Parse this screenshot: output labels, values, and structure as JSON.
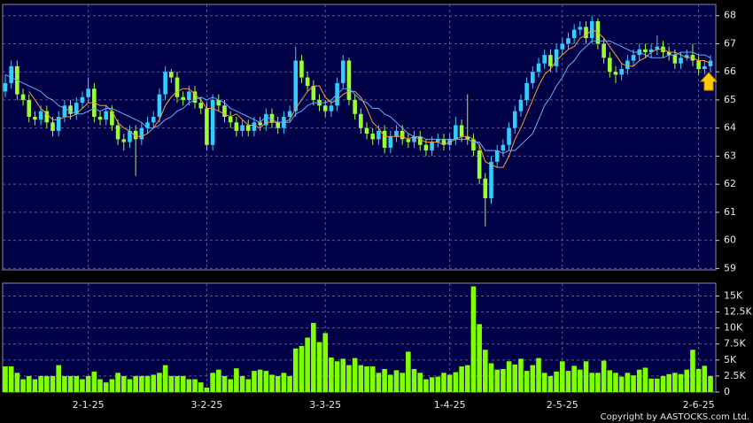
{
  "chart_data": [
    {
      "type": "candlestick",
      "categories": [
        null,
        null,
        null,
        null,
        null,
        null,
        null,
        null,
        null,
        null,
        null,
        null,
        null,
        null,
        "2-1-25",
        null,
        null,
        null,
        null,
        null,
        null,
        null,
        null,
        null,
        null,
        null,
        null,
        null,
        null,
        null,
        null,
        null,
        null,
        null,
        "3-2-25",
        null,
        null,
        null,
        null,
        null,
        null,
        null,
        null,
        null,
        null,
        null,
        null,
        null,
        null,
        null,
        null,
        null,
        null,
        null,
        "3-3-25",
        null,
        null,
        null,
        null,
        null,
        null,
        null,
        null,
        null,
        null,
        null,
        null,
        null,
        null,
        null,
        null,
        null,
        null,
        null,
        null,
        "1-4-25",
        null,
        null,
        null,
        null,
        null,
        null,
        null,
        null,
        null,
        null,
        null,
        null,
        null,
        null,
        null,
        null,
        null,
        null,
        "2-5-25",
        null,
        null,
        null,
        null,
        null,
        null,
        null,
        null,
        null,
        null,
        null,
        null,
        null,
        null,
        null,
        null,
        null,
        null,
        null,
        null,
        null,
        null,
        "2-6-25",
        null,
        null
      ],
      "open": [
        65.3,
        65.6,
        66.2,
        65.2,
        65.0,
        64.4,
        64.3,
        64.6,
        64.2,
        63.9,
        64.4,
        64.8,
        64.5,
        64.9,
        65.1,
        65.4,
        64.4,
        64.3,
        64.6,
        64.1,
        63.6,
        63.5,
        63.9,
        63.6,
        64.0,
        64.2,
        64.4,
        65.2,
        66.0,
        65.8,
        65.1,
        65.0,
        65.3,
        64.9,
        64.7,
        63.4,
        65.0,
        64.8,
        64.4,
        64.2,
        63.9,
        64.1,
        63.9,
        64.2,
        64.1,
        64.5,
        64.2,
        64.0,
        64.4,
        64.6,
        66.4,
        65.8,
        65.5,
        65.0,
        64.8,
        64.6,
        64.8,
        65.6,
        66.4,
        65.0,
        64.5,
        64.0,
        63.8,
        63.6,
        63.9,
        63.3,
        63.7,
        63.9,
        63.6,
        63.5,
        63.7,
        63.4,
        63.2,
        63.5,
        63.6,
        63.4,
        63.6,
        64.1,
        63.7,
        63.6,
        63.2,
        62.2,
        61.5,
        62.8,
        63.2,
        63.4,
        64.0,
        64.6,
        65.0,
        65.6,
        66.0,
        66.3,
        66.6,
        66.2,
        66.8,
        67.0,
        67.2,
        67.5,
        67.6,
        67.2,
        67.8,
        67.0,
        66.5,
        66.0,
        65.9,
        66.1,
        66.4,
        66.6,
        66.8,
        66.7,
        66.8,
        66.9,
        66.7,
        66.6,
        66.3,
        66.5,
        66.6,
        66.4,
        66.1,
        66.2
      ],
      "high": [
        65.9,
        66.4,
        66.4,
        65.4,
        65.2,
        64.6,
        64.8,
        64.8,
        64.4,
        64.6,
        65.0,
        65.0,
        65.1,
        65.3,
        65.8,
        65.6,
        64.6,
        64.8,
        64.8,
        64.3,
        63.8,
        64.1,
        64.1,
        64.2,
        64.4,
        64.6,
        65.4,
        66.2,
        66.1,
        66.0,
        65.3,
        65.5,
        65.5,
        65.1,
        64.9,
        65.2,
        65.2,
        65.0,
        64.6,
        64.4,
        64.3,
        64.3,
        64.4,
        64.4,
        64.7,
        64.7,
        64.4,
        64.6,
        64.8,
        66.9,
        66.6,
        66.0,
        65.7,
        65.2,
        65.0,
        65.0,
        65.8,
        66.6,
        66.5,
        65.2,
        64.7,
        64.2,
        64.0,
        64.1,
        64.1,
        63.9,
        64.1,
        64.1,
        63.8,
        63.9,
        63.9,
        63.6,
        63.7,
        63.8,
        63.8,
        63.8,
        64.4,
        64.3,
        65.2,
        63.8,
        63.4,
        62.4,
        63.0,
        63.4,
        63.6,
        64.2,
        64.8,
        65.2,
        65.8,
        66.2,
        66.5,
        66.8,
        66.8,
        67.0,
        67.2,
        67.4,
        67.7,
        67.8,
        67.8,
        68.0,
        67.9,
        67.2,
        66.7,
        66.2,
        66.3,
        66.6,
        66.8,
        67.0,
        67.0,
        67.0,
        67.3,
        67.1,
        66.9,
        66.8,
        66.7,
        66.8,
        67.0,
        66.6,
        66.4,
        66.6
      ],
      "low": [
        65.1,
        65.4,
        65.0,
        64.8,
        64.2,
        64.1,
        64.1,
        64.0,
        63.7,
        63.7,
        64.2,
        64.3,
        64.3,
        64.7,
        64.9,
        64.2,
        64.1,
        64.1,
        63.9,
        63.4,
        63.2,
        63.3,
        62.3,
        63.4,
        63.8,
        64.0,
        64.2,
        65.0,
        65.6,
        64.9,
        64.8,
        64.8,
        64.7,
        64.5,
        63.2,
        63.2,
        64.6,
        64.2,
        64.0,
        63.7,
        63.7,
        63.7,
        63.7,
        63.9,
        63.9,
        64.0,
        63.8,
        63.8,
        64.2,
        64.4,
        65.6,
        65.3,
        64.8,
        64.6,
        64.4,
        64.4,
        64.6,
        65.4,
        64.8,
        64.3,
        63.8,
        63.6,
        63.4,
        63.4,
        63.1,
        63.1,
        63.5,
        63.4,
        63.3,
        63.3,
        63.2,
        63.0,
        63.0,
        63.3,
        63.2,
        63.2,
        63.4,
        63.5,
        63.4,
        63.0,
        62.0,
        60.5,
        61.3,
        62.6,
        63.0,
        63.2,
        63.8,
        64.4,
        64.8,
        65.4,
        65.8,
        66.1,
        66.0,
        66.0,
        66.6,
        66.8,
        67.0,
        67.3,
        67.0,
        67.0,
        66.8,
        66.3,
        65.8,
        65.6,
        65.7,
        65.9,
        66.2,
        66.4,
        66.5,
        66.5,
        66.6,
        66.5,
        66.4,
        66.1,
        66.1,
        66.4,
        66.2,
        65.9,
        65.9,
        66.0
      ],
      "close": [
        65.6,
        66.2,
        65.2,
        65.0,
        64.4,
        64.3,
        64.6,
        64.2,
        63.9,
        64.4,
        64.8,
        64.5,
        64.9,
        65.1,
        65.4,
        64.4,
        64.3,
        64.6,
        64.1,
        63.6,
        63.5,
        63.9,
        63.6,
        64.0,
        64.2,
        64.4,
        65.2,
        66.0,
        65.8,
        65.1,
        65.0,
        65.3,
        64.9,
        64.7,
        63.4,
        65.0,
        64.8,
        64.4,
        64.2,
        63.9,
        64.1,
        63.9,
        64.2,
        64.1,
        64.5,
        64.2,
        64.0,
        64.4,
        64.6,
        66.4,
        65.8,
        65.5,
        65.0,
        64.8,
        64.6,
        64.8,
        65.6,
        66.4,
        65.0,
        64.5,
        64.0,
        63.8,
        63.6,
        63.9,
        63.3,
        63.7,
        63.9,
        63.6,
        63.5,
        63.7,
        63.4,
        63.2,
        63.5,
        63.6,
        63.4,
        63.6,
        64.1,
        63.7,
        63.6,
        63.2,
        62.2,
        61.5,
        62.8,
        63.2,
        63.4,
        64.0,
        64.6,
        65.0,
        65.6,
        66.0,
        66.3,
        66.6,
        66.2,
        66.8,
        67.0,
        67.2,
        67.5,
        67.6,
        67.2,
        67.8,
        67.0,
        66.5,
        66.0,
        65.9,
        66.1,
        66.4,
        66.6,
        66.8,
        66.7,
        66.8,
        66.9,
        66.7,
        66.6,
        66.3,
        66.5,
        66.6,
        66.4,
        66.1,
        66.2,
        66.4
      ],
      "up_color": "#33ccff",
      "down_color": "#99ff33",
      "lines": [
        {
          "color": "#ff9933",
          "values": [
            null,
            null,
            null,
            null,
            65.3,
            65.0,
            64.7,
            64.5,
            64.3,
            64.3,
            64.4,
            64.4,
            64.5,
            64.7,
            64.9,
            64.9,
            64.8,
            64.8,
            64.6,
            64.2,
            64.0,
            63.9,
            63.7,
            63.7,
            63.8,
            64.0,
            64.3,
            64.8,
            65.1,
            65.3,
            65.4,
            65.4,
            65.2,
            65.0,
            64.7,
            64.7,
            64.6,
            64.5,
            64.4,
            64.5,
            64.3,
            64.1,
            64.1,
            64.0,
            64.2,
            64.2,
            64.2,
            64.2,
            64.3,
            64.7,
            65.0,
            65.3,
            65.5,
            65.5,
            65.1,
            64.9,
            65.0,
            65.2,
            65.3,
            65.3,
            65.1,
            64.7,
            64.2,
            64.0,
            63.7,
            63.7,
            63.7,
            63.7,
            63.6,
            63.7,
            63.6,
            63.5,
            63.5,
            63.5,
            63.4,
            63.5,
            63.6,
            63.7,
            63.7,
            63.6,
            63.4,
            62.8,
            62.7,
            62.6,
            62.6,
            63.0,
            63.6,
            64.0,
            64.5,
            65.0,
            65.5,
            65.9,
            66.1,
            66.4,
            66.6,
            66.8,
            66.9,
            67.2,
            67.3,
            67.5,
            67.4,
            67.2,
            66.9,
            66.6,
            66.3,
            66.2,
            66.2,
            66.4,
            66.5,
            66.7,
            66.8,
            66.8,
            66.7,
            66.7,
            66.6,
            66.5,
            66.5,
            66.4,
            66.4,
            66.3
          ]
        },
        {
          "color": "#66aaff",
          "values": [
            65.9,
            65.8,
            65.7,
            65.6,
            65.5,
            65.4,
            65.3,
            65.1,
            65.0,
            64.8,
            64.7,
            64.6,
            64.5,
            64.5,
            64.6,
            64.7,
            64.6,
            64.7,
            64.7,
            64.6,
            64.5,
            64.4,
            64.3,
            64.2,
            64.0,
            64.0,
            64.1,
            64.3,
            64.4,
            64.6,
            64.7,
            64.9,
            65.0,
            65.1,
            65.0,
            65.1,
            65.0,
            64.9,
            64.7,
            64.6,
            64.5,
            64.4,
            64.3,
            64.2,
            64.4,
            64.3,
            64.2,
            64.2,
            64.2,
            64.5,
            64.6,
            64.8,
            64.9,
            64.9,
            64.9,
            65.0,
            65.2,
            65.4,
            65.4,
            65.2,
            65.0,
            64.9,
            64.7,
            64.7,
            64.5,
            64.4,
            64.2,
            64.0,
            63.8,
            63.7,
            63.7,
            63.6,
            63.6,
            63.6,
            63.6,
            63.6,
            63.6,
            63.6,
            63.6,
            63.5,
            63.5,
            63.2,
            63.2,
            63.2,
            63.1,
            63.2,
            63.2,
            63.4,
            63.6,
            63.8,
            64.3,
            64.8,
            65.1,
            65.5,
            65.8,
            66.2,
            66.4,
            66.7,
            66.9,
            67.1,
            67.1,
            67.1,
            67.1,
            67.0,
            66.9,
            66.8,
            66.7,
            66.7,
            66.6,
            66.5,
            66.5,
            66.5,
            66.6,
            66.6,
            66.7,
            66.7,
            66.7,
            66.6,
            66.6,
            66.5
          ]
        }
      ],
      "ylim": [
        58.95,
        68.4
      ],
      "yticks": [
        59,
        60,
        61,
        62,
        63,
        64,
        65,
        66,
        67,
        68
      ],
      "grid": true
    },
    {
      "type": "bar",
      "values": [
        4000,
        4000,
        3000,
        2000,
        2500,
        2000,
        2500,
        2500,
        2500,
        4200,
        2500,
        2500,
        2500,
        2000,
        2500,
        3200,
        2000,
        1500,
        2000,
        3000,
        2500,
        2000,
        2500,
        2500,
        2500,
        2700,
        3000,
        4200,
        2500,
        2500,
        2500,
        2000,
        2000,
        1500,
        700,
        3000,
        3500,
        2500,
        2000,
        3700,
        2500,
        2000,
        3300,
        3500,
        3300,
        2700,
        2500,
        3000,
        2500,
        6800,
        7200,
        8500,
        10800,
        7800,
        9200,
        5400,
        4800,
        5200,
        4200,
        5300,
        4200,
        4000,
        4000,
        3000,
        3600,
        2700,
        3400,
        3000,
        6300,
        3600,
        3000,
        2000,
        2300,
        2400,
        3000,
        2700,
        3100,
        4000,
        4200,
        16500,
        10600,
        6600,
        4500,
        3500,
        3600,
        4800,
        4300,
        5200,
        3300,
        4200,
        5300,
        3000,
        2500,
        3200,
        4800,
        3300,
        4100,
        3500,
        4800,
        3000,
        3000,
        4900,
        3400,
        3000,
        2400,
        3000,
        2600,
        3500,
        3800,
        2100,
        2100,
        2500,
        2800,
        3000,
        2800,
        3500,
        6600,
        3600,
        4100,
        2500
      ],
      "color": "#80ff00",
      "ylim": [
        0,
        17000
      ],
      "yticks": [
        0,
        {
          "value": 2500,
          "label": "2.5K"
        },
        {
          "value": 5000,
          "label": "5K"
        },
        {
          "value": 7500,
          "label": "7.5K"
        },
        {
          "value": 10000,
          "label": "10K"
        },
        {
          "value": 12500,
          "label": "12.5K"
        },
        {
          "value": 15000,
          "label": "15K"
        }
      ],
      "grid": true
    }
  ],
  "copyright": "Copyright by AASTOCKS.com Ltd."
}
